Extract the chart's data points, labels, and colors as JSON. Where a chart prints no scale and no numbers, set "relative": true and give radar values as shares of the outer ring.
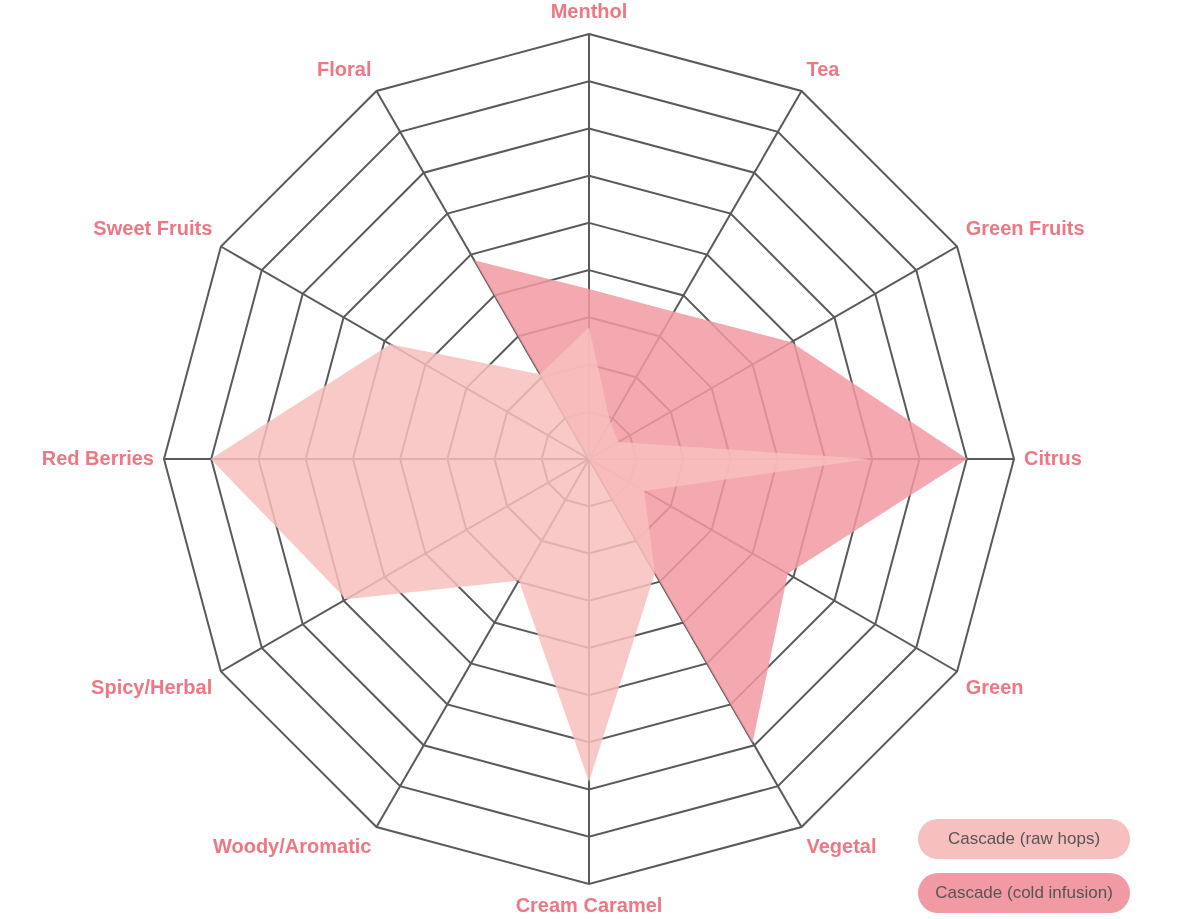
{
  "chart_data": {
    "type": "radar",
    "relative": true,
    "categories": [
      "Menthol",
      "Tea",
      "Green Fruits",
      "Citrus",
      "Green",
      "Vegetal",
      "Cream Caramel",
      "Woody/Aromatic",
      "Spicy/Herbal",
      "Red Berries",
      "Sweet Fruits",
      "Floral"
    ],
    "series": [
      {
        "name": "Cascade (raw hops)",
        "color": "#f7bfbd",
        "values": [
          0.31,
          0.1,
          0.08,
          0.66,
          0.15,
          0.31,
          0.76,
          0.33,
          0.66,
          0.89,
          0.54,
          0.23
        ]
      },
      {
        "name": "Cascade (cold infusion)",
        "color": "#f29aa3",
        "values": [
          0.4,
          0.4,
          0.55,
          0.89,
          0.54,
          0.77,
          0,
          0,
          0,
          0,
          0,
          0.54
        ]
      }
    ],
    "grid": true,
    "legend": "bottom right",
    "marker": "none"
  }
}
